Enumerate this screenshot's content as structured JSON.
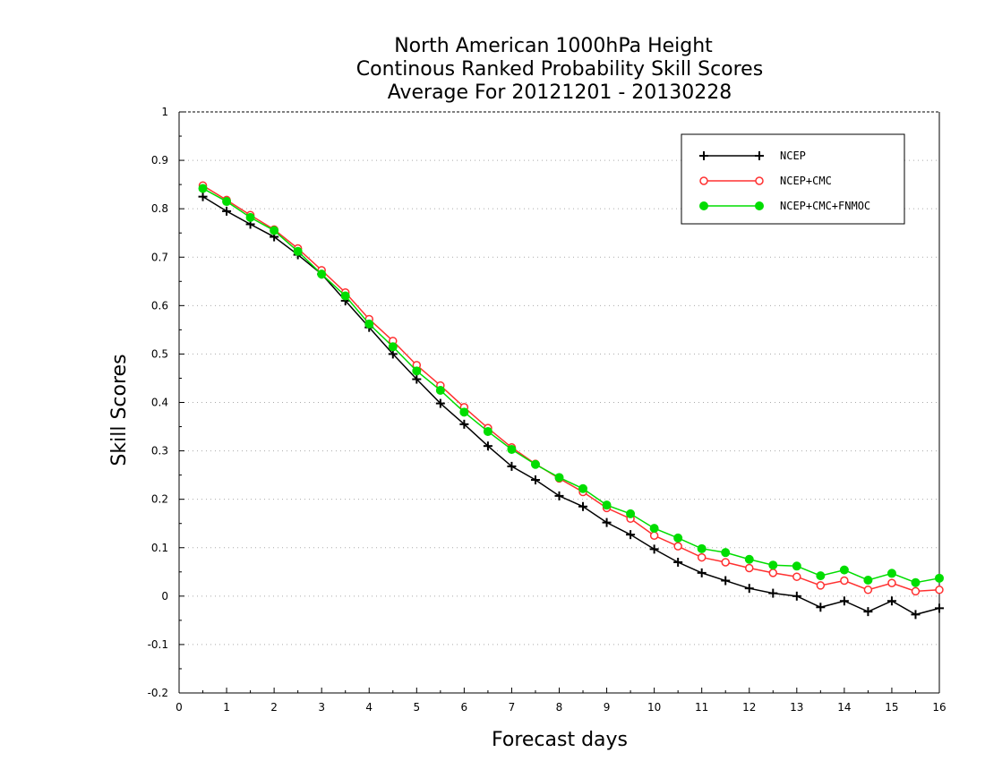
{
  "chart_data": {
    "type": "line",
    "title_lines": [
      "North American 1000hPa Height",
      "Continous Ranked Probability Skill Scores",
      "Average For 20121201 - 20130228"
    ],
    "xlabel": "Forecast days",
    "ylabel": "Skill Scores",
    "xlim": [
      0,
      16
    ],
    "ylim": [
      -0.2,
      1
    ],
    "x_ticks": [
      0,
      1,
      2,
      3,
      4,
      5,
      6,
      7,
      8,
      9,
      10,
      11,
      12,
      13,
      14,
      15,
      16
    ],
    "x_tick_labels": [
      "0",
      "1",
      "2",
      "3",
      "4",
      "5",
      "6",
      "7",
      "8",
      "9",
      "10",
      "11",
      "12",
      "13",
      "14",
      "15",
      "16"
    ],
    "y_ticks": [
      -0.2,
      -0.1,
      0,
      0.1,
      0.2,
      0.3,
      0.4,
      0.5,
      0.6,
      0.7,
      0.8,
      0.9,
      1
    ],
    "y_tick_labels": [
      "-0.2",
      "-0.1",
      "0",
      "0.1",
      "0.2",
      "0.3",
      "0.4",
      "0.5",
      "0.6",
      "0.7",
      "0.8",
      "0.9",
      "1"
    ],
    "grid": "horizontal-dotted",
    "legend_position": "top-right",
    "x": [
      0.5,
      1,
      1.5,
      2,
      2.5,
      3,
      3.5,
      4,
      4.5,
      5,
      5.5,
      6,
      6.5,
      7,
      7.5,
      8,
      8.5,
      9,
      9.5,
      10,
      10.5,
      11,
      11.5,
      12,
      12.5,
      13,
      13.5,
      14,
      14.5,
      15,
      15.5,
      16
    ],
    "series": [
      {
        "name": "NCEP",
        "color": "#000000",
        "marker": "plus",
        "values": [
          0.825,
          0.795,
          0.768,
          0.742,
          0.705,
          0.665,
          0.61,
          0.555,
          0.5,
          0.448,
          0.398,
          0.355,
          0.31,
          0.268,
          0.24,
          0.207,
          0.185,
          0.152,
          0.127,
          0.097,
          0.07,
          0.048,
          0.032,
          0.016,
          0.006,
          0.0,
          -0.023,
          -0.01,
          -0.032,
          -0.01,
          -0.038,
          -0.025
        ]
      },
      {
        "name": "NCEP+CMC",
        "color": "#ff3030",
        "marker": "open-circle",
        "values": [
          0.848,
          0.818,
          0.787,
          0.757,
          0.718,
          0.673,
          0.627,
          0.572,
          0.527,
          0.477,
          0.435,
          0.39,
          0.347,
          0.307,
          0.273,
          0.243,
          0.215,
          0.182,
          0.16,
          0.125,
          0.103,
          0.08,
          0.07,
          0.058,
          0.048,
          0.04,
          0.022,
          0.032,
          0.013,
          0.027,
          0.01,
          0.013
        ]
      },
      {
        "name": "NCEP+CMC+FNMOC",
        "color": "#00dd00",
        "marker": "filled-circle",
        "values": [
          0.842,
          0.815,
          0.782,
          0.755,
          0.712,
          0.665,
          0.62,
          0.562,
          0.515,
          0.465,
          0.425,
          0.38,
          0.34,
          0.303,
          0.272,
          0.245,
          0.222,
          0.188,
          0.17,
          0.14,
          0.12,
          0.098,
          0.09,
          0.076,
          0.064,
          0.062,
          0.042,
          0.054,
          0.033,
          0.047,
          0.028,
          0.037
        ]
      }
    ]
  }
}
